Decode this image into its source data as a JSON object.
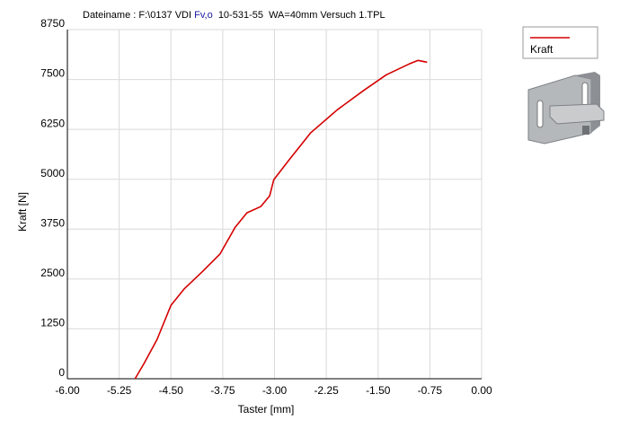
{
  "chart_data": {
    "type": "line",
    "title": [
      "Dateiname : F:\\0137 VDI ",
      "Fv,o",
      "  10-531-55  WA=40mm Versuch 1.TPL"
    ],
    "x_label": "Taster [mm]",
    "y_label": "Kraft [N]",
    "x": [
      -5.02,
      -4.89,
      -4.7,
      -4.5,
      -4.31,
      -4.05,
      -3.79,
      -3.57,
      -3.4,
      -3.2,
      -3.07,
      -3.01,
      -2.81,
      -2.48,
      -2.09,
      -1.7,
      -1.38,
      -1.05,
      -0.92,
      -0.79
    ],
    "series": [
      {
        "name": "Kraft",
        "color": "#d40000",
        "values": [
          0,
          382,
          989,
          1843,
          2248,
          2675,
          3124,
          3798,
          4158,
          4315,
          4585,
          4989,
          5439,
          6158,
          6742,
          7237,
          7619,
          7888,
          7978,
          7933
        ]
      }
    ],
    "xlim": [
      -6,
      0
    ],
    "xticks": [
      {
        "value": -6,
        "label": "-6.00"
      },
      {
        "value": -5.25,
        "label": "-5.25"
      },
      {
        "value": -4.5,
        "label": "-4.50"
      },
      {
        "value": -3.75,
        "label": "-3.75"
      },
      {
        "value": -3,
        "label": "-3.00"
      },
      {
        "value": -2.25,
        "label": "-2.25"
      },
      {
        "value": -1.5,
        "label": "-1.50"
      },
      {
        "value": -0.75,
        "label": "-0.75"
      },
      {
        "value": 0,
        "label": "0.00"
      }
    ],
    "ylim": [
      0,
      8750
    ],
    "yticks": [
      0,
      1250,
      2500,
      3750,
      5000,
      6250,
      7500,
      8750
    ],
    "grid": true
  }
}
